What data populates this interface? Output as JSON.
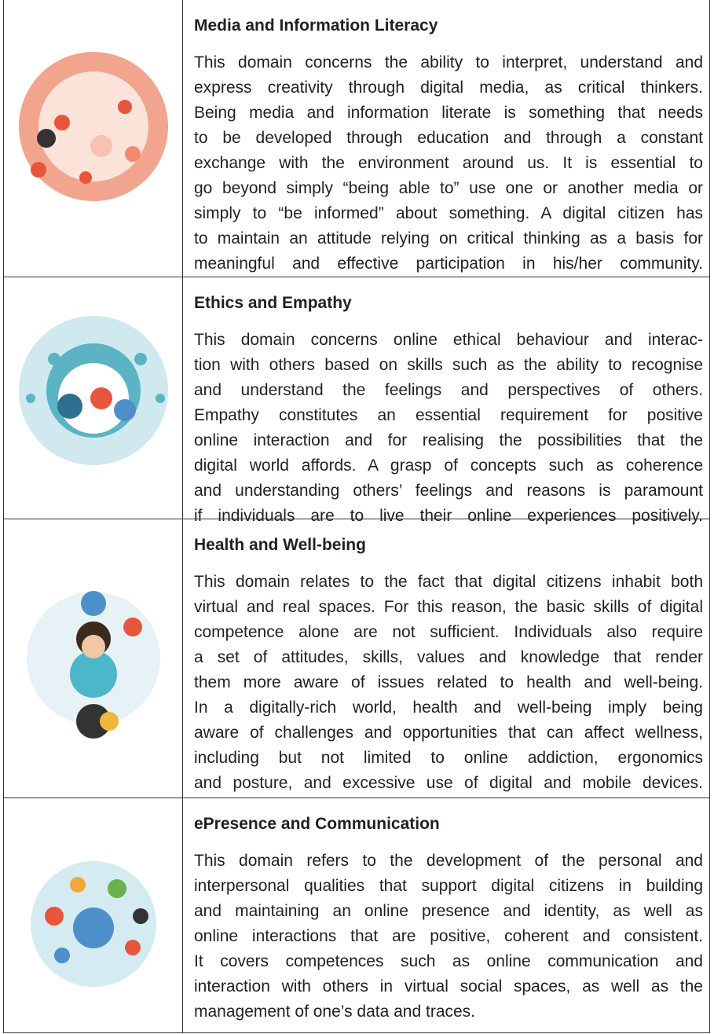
{
  "rows": [
    {
      "title": "Media and Information Literacy",
      "lines": [
        "This domain concerns the ability to interpret, understand and",
        "express creativity through digital media, as critical thinkers.",
        "Being media and information literate is something that needs",
        "to be developed through education and through a constant",
        "exchange with the environment around us. It is essential to",
        "go beyond simply “being able to” use one or another media or",
        "simply to “be informed” about something. A digital citizen has",
        "to maintain an attitude relying on critical thinking as a basis for",
        "meaningful and effective participation in his/her community."
      ]
    },
    {
      "title": "Ethics and Empathy",
      "lines": [
        "This domain concerns online ethical behaviour and interac-",
        "tion with others based on skills such as the ability to recognise",
        "and understand the feelings and perspectives of others.",
        "Empathy constitutes an essential requirement for positive",
        "online interaction and for realising the possibilities that the",
        "digital world affords. A grasp of concepts such as coherence",
        "and understanding others’ feelings and reasons is paramount",
        "if individuals are to live their online experiences positively."
      ]
    },
    {
      "title": "Health and Well-being",
      "lines": [
        "This domain relates to the fact that digital citizens inhabit both",
        "virtual and real spaces. For this reason, the basic skills of digital",
        "competence alone are not sufficient. Individuals also require",
        "a set of attitudes, skills, values and knowledge that render",
        "them more aware of issues related to health and well-being.",
        "In a digitally-rich world, health and well-being imply being",
        "aware of challenges and opportunities that can affect wellness,",
        "including but not limited to online addiction, ergonomics",
        "and posture, and excessive use of digital and mobile devices."
      ]
    },
    {
      "title": "ePresence and Communication",
      "lines": [
        "This domain refers to the development of the personal and",
        "interpersonal qualities that support digital citizens in building",
        "and maintaining an online presence and identity, as well as",
        "online interactions that are positive, coherent and consistent.",
        "It covers competences such as online communication and",
        "interaction with others in virtual social spaces, as well as the",
        "management of one’s data and traces."
      ]
    }
  ]
}
